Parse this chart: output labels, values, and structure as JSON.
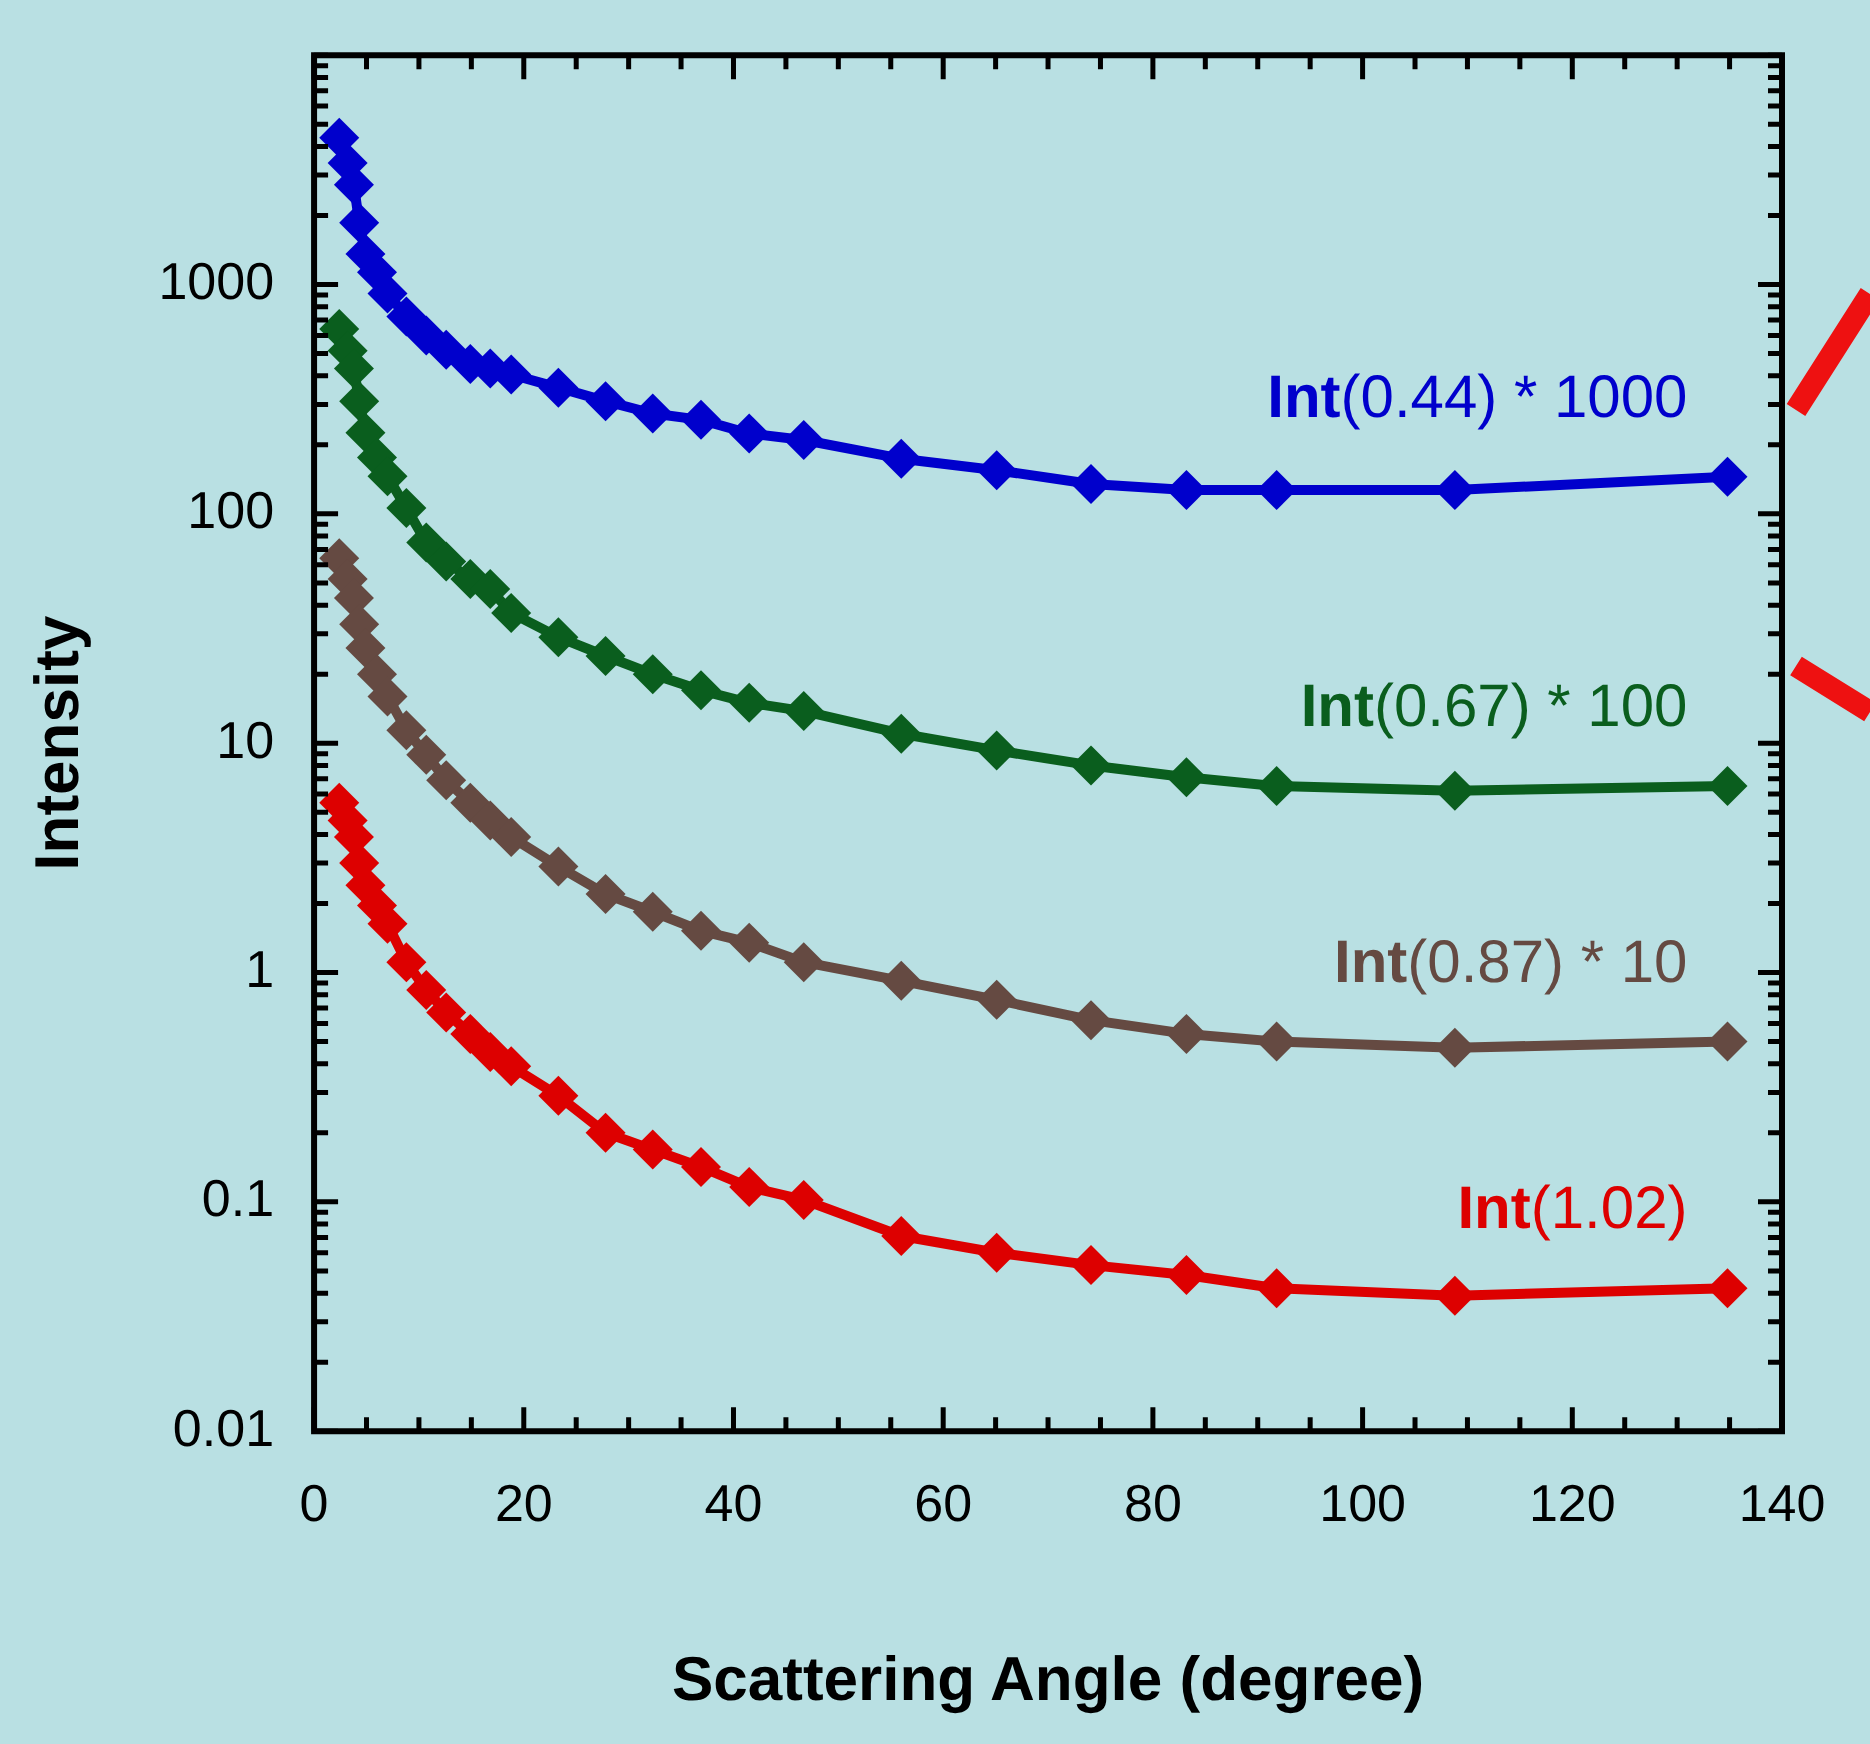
{
  "chart_data": {
    "type": "line",
    "xlabel": "Scattering Angle (degree)",
    "ylabel": "Intensity",
    "log": "y",
    "marker": "diamond",
    "line_style": "solid",
    "x": [
      2.4,
      3.2,
      3.8,
      4.3,
      4.9,
      6.0,
      7.0,
      8.8,
      10.7,
      12.6,
      14.9,
      16.8,
      18.8,
      23.3,
      27.8,
      32.3,
      36.9,
      41.5,
      46.7,
      56,
      65.1,
      74.1,
      83.2,
      91.8,
      108.8,
      134.8
    ],
    "xlim": [
      0,
      140
    ],
    "xticks": [
      0,
      {
        "value": 5,
        "label": null
      },
      {
        "value": 10,
        "label": null
      },
      {
        "value": 15,
        "label": null
      },
      20,
      {
        "value": 25,
        "label": null
      },
      {
        "value": 30,
        "label": null
      },
      {
        "value": 35,
        "label": null
      },
      40,
      {
        "value": 45,
        "label": null
      },
      {
        "value": 50,
        "label": null
      },
      {
        "value": 55,
        "label": null
      },
      60,
      {
        "value": 65,
        "label": null
      },
      {
        "value": 70,
        "label": null
      },
      {
        "value": 75,
        "label": null
      },
      80,
      {
        "value": 85,
        "label": null
      },
      {
        "value": 90,
        "label": null
      },
      {
        "value": 95,
        "label": null
      },
      100,
      {
        "value": 105,
        "label": null
      },
      {
        "value": 110,
        "label": null
      },
      {
        "value": 115,
        "label": null
      },
      120,
      {
        "value": 125,
        "label": null
      },
      {
        "value": 130,
        "label": null
      },
      {
        "value": 135,
        "label": null
      },
      140
    ],
    "ylim": [
      0.01,
      10000
    ],
    "yticks": [
      0.01,
      {
        "value": 0.02,
        "label": null
      },
      {
        "value": 0.03,
        "label": null
      },
      {
        "value": 0.04,
        "label": null
      },
      {
        "value": 0.05,
        "label": null
      },
      {
        "value": 0.06,
        "label": null
      },
      {
        "value": 0.07,
        "label": null
      },
      {
        "value": 0.08,
        "label": null
      },
      {
        "value": 0.09,
        "label": null
      },
      0.1,
      {
        "value": 0.2,
        "label": null
      },
      {
        "value": 0.3,
        "label": null
      },
      {
        "value": 0.4,
        "label": null
      },
      {
        "value": 0.5,
        "label": null
      },
      {
        "value": 0.6,
        "label": null
      },
      {
        "value": 0.7,
        "label": null
      },
      {
        "value": 0.8,
        "label": null
      },
      {
        "value": 0.9,
        "label": null
      },
      1,
      {
        "value": 2,
        "label": null
      },
      {
        "value": 3,
        "label": null
      },
      {
        "value": 4,
        "label": null
      },
      {
        "value": 5,
        "label": null
      },
      {
        "value": 6,
        "label": null
      },
      {
        "value": 7,
        "label": null
      },
      {
        "value": 8,
        "label": null
      },
      {
        "value": 9,
        "label": null
      },
      10,
      {
        "value": 20,
        "label": null
      },
      {
        "value": 30,
        "label": null
      },
      {
        "value": 40,
        "label": null
      },
      {
        "value": 50,
        "label": null
      },
      {
        "value": 60,
        "label": null
      },
      {
        "value": 70,
        "label": null
      },
      {
        "value": 80,
        "label": null
      },
      {
        "value": 90,
        "label": null
      },
      100,
      {
        "value": 200,
        "label": null
      },
      {
        "value": 300,
        "label": null
      },
      {
        "value": 400,
        "label": null
      },
      {
        "value": 500,
        "label": null
      },
      {
        "value": 600,
        "label": null
      },
      {
        "value": 700,
        "label": null
      },
      {
        "value": 800,
        "label": null
      },
      {
        "value": 900,
        "label": null
      },
      1000,
      {
        "value": 2000,
        "label": null
      },
      {
        "value": 3000,
        "label": null
      },
      {
        "value": 4000,
        "label": null
      },
      {
        "value": 5000,
        "label": null
      },
      {
        "value": 6000,
        "label": null
      },
      {
        "value": 7000,
        "label": null
      },
      {
        "value": 8000,
        "label": null
      },
      {
        "value": 9000,
        "label": null
      },
      {
        "value": 10000,
        "label": null
      }
    ],
    "series": [
      {
        "name": "Int(0.44) * 1000",
        "color": "#0000cc",
        "values": [
          4370,
          3390,
          2720,
          1860,
          1360,
          1130,
          915,
          725,
          600,
          520,
          450,
          430,
          405,
          355,
          310,
          274,
          257,
          224,
          210,
          174,
          155,
          135,
          127,
          127,
          127,
          145
        ]
      },
      {
        "name": "Int(0.67) * 100",
        "color": "#0a5e1e",
        "values": [
          640,
          515,
          430,
          310,
          226,
          176,
          146,
          106,
          75,
          62,
          52,
          47,
          37,
          29,
          24,
          20,
          17,
          15,
          13.8,
          11,
          9.3,
          8.0,
          7.1,
          6.5,
          6.2,
          6.5
        ]
      },
      {
        "name": "Int(0.87) * 10",
        "color": "#654a42",
        "values": [
          64,
          52,
          43,
          33,
          26,
          20,
          16,
          11.4,
          8.9,
          6.9,
          5.5,
          4.6,
          3.9,
          2.9,
          2.2,
          1.84,
          1.52,
          1.35,
          1.11,
          0.92,
          0.76,
          0.62,
          0.54,
          0.5,
          0.47,
          0.5
        ]
      },
      {
        "name": "Int(1.02)",
        "color": "#dd0000",
        "values": [
          5.5,
          4.6,
          3.9,
          3.0,
          2.4,
          1.96,
          1.63,
          1.11,
          0.84,
          0.67,
          0.54,
          0.45,
          0.39,
          0.29,
          0.2,
          0.169,
          0.142,
          0.116,
          0.102,
          0.071,
          0.06,
          0.053,
          0.048,
          0.042,
          0.039,
          0.042
        ]
      }
    ]
  }
}
